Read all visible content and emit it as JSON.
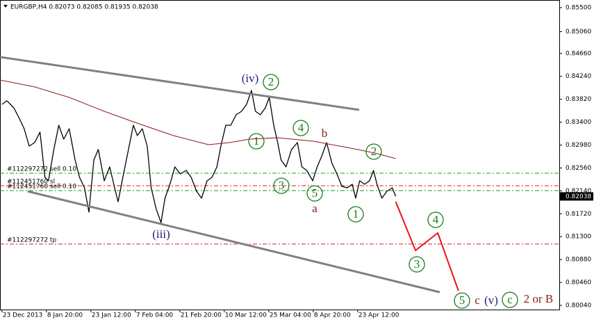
{
  "chart_data": {
    "type": "line",
    "header": "EURGBP,H4  0.82073 0.82085 0.81935 0.82038",
    "xlim": [
      -4,
      1128
    ],
    "ylim": [
      0.79963,
      0.8564
    ],
    "xticks": [
      {
        "value": 0,
        "label": "23 Dec 2013"
      },
      {
        "value": 90,
        "label": "8 Jan 20:00"
      },
      {
        "value": 180,
        "label": "23 Jan 12:00"
      },
      {
        "value": 270,
        "label": "7 Feb 04:00"
      },
      {
        "value": 360,
        "label": "21 Feb 20:00"
      },
      {
        "value": 450,
        "label": "10 Mar 12:00"
      },
      {
        "value": 540,
        "label": "25 Mar 04:00"
      },
      {
        "value": 630,
        "label": "8 Apr 20:00"
      },
      {
        "value": 720,
        "label": "23 Apr 12:00"
      }
    ],
    "yticks": [
      {
        "value": 0.855,
        "label": "0.85500"
      },
      {
        "value": 0.8506,
        "label": "0.85060"
      },
      {
        "value": 0.8466,
        "label": "0.84660"
      },
      {
        "value": 0.8424,
        "label": "0.84240"
      },
      {
        "value": 0.8382,
        "label": "0.83820"
      },
      {
        "value": 0.834,
        "label": "0.83400"
      },
      {
        "value": 0.8298,
        "label": "0.82980"
      },
      {
        "value": 0.8256,
        "label": "0.82560"
      },
      {
        "value": 0.8214,
        "label": "0.82140"
      },
      {
        "value": 0.8172,
        "label": "0.81720"
      },
      {
        "value": 0.813,
        "label": "0.81300"
      },
      {
        "value": 0.8088,
        "label": "0.80880"
      },
      {
        "value": 0.8046,
        "label": "0.80460"
      },
      {
        "value": 0.8004,
        "label": "0.80040"
      }
    ],
    "current_price": {
      "value": 0.82038,
      "label": "0.82038"
    },
    "series": [
      {
        "color": "#000000",
        "width": 1.3,
        "x": [
          0,
          10,
          24,
          35,
          45,
          55,
          66,
          77,
          87,
          94,
          105,
          115,
          125,
          136,
          148,
          157,
          167,
          176,
          186,
          195,
          207,
          218,
          228,
          235,
          246,
          256,
          266,
          274,
          284,
          294,
          302,
          312,
          322,
          330,
          340,
          350,
          361,
          373,
          383,
          394,
          404,
          415,
          425,
          435,
          443,
          453,
          463,
          474,
          485,
          495,
          505,
          513,
          523,
          533,
          541,
          550,
          558,
          565,
          575,
          586,
          598,
          607,
          617,
          629,
          638,
          647,
          657,
          668,
          678,
          688,
          699,
          709,
          716,
          724,
          734,
          744,
          752,
          759,
          769,
          779,
          790,
          797
        ],
        "values": [
          0.83727,
          0.83791,
          0.83663,
          0.83472,
          0.8328,
          0.82961,
          0.83025,
          0.83217,
          0.82387,
          0.82324,
          0.82898,
          0.83344,
          0.83089,
          0.8328,
          0.82706,
          0.82387,
          0.82196,
          0.81749,
          0.82706,
          0.82898,
          0.82324,
          0.82579,
          0.82196,
          0.81941,
          0.82451,
          0.82898,
          0.83344,
          0.83153,
          0.8328,
          0.82961,
          0.82196,
          0.81813,
          0.81558,
          0.82005,
          0.8226,
          0.82579,
          0.82451,
          0.82515,
          0.82387,
          0.82132,
          0.82005,
          0.82324,
          0.82387,
          0.82579,
          0.82961,
          0.83344,
          0.83344,
          0.83535,
          0.83599,
          0.83727,
          0.83982,
          0.83599,
          0.83535,
          0.83663,
          0.83854,
          0.83344,
          0.83025,
          0.82706,
          0.82579,
          0.82898,
          0.83025,
          0.82579,
          0.82515,
          0.82324,
          0.82579,
          0.8277,
          0.83025,
          0.82643,
          0.82451,
          0.82222,
          0.82196,
          0.8226,
          0.82005,
          0.82324,
          0.8226,
          0.82324,
          0.82515,
          0.8226,
          0.82005,
          0.82132,
          0.82196,
          0.82038
        ]
      },
      {
        "color": "#8b1a1a",
        "width": 1,
        "x": [
          -4,
          66,
          136,
          207,
          277,
          347,
          418,
          460,
          502,
          558,
          629,
          699,
          755,
          797
        ],
        "values": [
          0.84173,
          0.84046,
          0.83854,
          0.83599,
          0.8337,
          0.83153,
          0.82987,
          0.83025,
          0.83089,
          0.83114,
          0.83051,
          0.82936,
          0.82834,
          0.82732
        ]
      },
      {
        "color": "#808080",
        "width": 3,
        "x": [
          -4,
          723
        ],
        "values": [
          0.84594,
          0.83625
        ]
      },
      {
        "color": "#808080",
        "width": 3,
        "x": [
          52,
          886
        ],
        "values": [
          0.82132,
          0.80282
        ]
      },
      {
        "color": "#e8141a",
        "width": 2,
        "x": [
          797,
          837,
          882,
          924
        ],
        "values": [
          0.81941,
          0.81048,
          0.81367,
          0.80308
        ]
      }
    ],
    "levels": [
      {
        "label": "#112297272 sell 0.10",
        "value": 0.82464,
        "color": "#1a9c1a"
      },
      {
        "label": "#112451760 sl",
        "value": 0.82234,
        "color": "#e8141a"
      },
      {
        "label": "#112451760 sell 0.10",
        "value": 0.82145,
        "color": "#1a9c1a"
      },
      {
        "label": "#112297272 tp",
        "value": 0.81163,
        "color": "#e8141a"
      }
    ],
    "annotations": [
      {
        "text": "(iv)",
        "color": "#1f1f7a",
        "circled": false
      },
      {
        "text": "2",
        "color": "#1a7a1a",
        "circled": true
      },
      {
        "text": "1",
        "color": "#1a7a1a",
        "circled": true
      },
      {
        "text": "4",
        "color": "#1a7a1a",
        "circled": true
      },
      {
        "text": "b",
        "color": "#8b1a1a",
        "circled": false
      },
      {
        "text": "2",
        "color": "#1a7a1a",
        "circled": true
      },
      {
        "text": "3",
        "color": "#1a7a1a",
        "circled": true
      },
      {
        "text": "5",
        "color": "#1a7a1a",
        "circled": true
      },
      {
        "text": "a",
        "color": "#8b1a1a",
        "circled": false
      },
      {
        "text": "1",
        "color": "#1a7a1a",
        "circled": true
      },
      {
        "text": "(iii)",
        "color": "#1f1f7a",
        "circled": false
      },
      {
        "text": "4",
        "color": "#1a7a1a",
        "circled": true
      },
      {
        "text": "3",
        "color": "#1a7a1a",
        "circled": true
      },
      {
        "text": "5",
        "color": "#1a7a1a",
        "circled": true
      },
      {
        "text": "c",
        "color": "#8b1a1a",
        "circled": false
      },
      {
        "text": "(v)",
        "color": "#1f1f7a",
        "circled": false
      },
      {
        "text": "c",
        "color": "#1a7a1a",
        "circled": true
      },
      {
        "text": "2 or B",
        "color": "#8b1a1a",
        "circled": false
      }
    ]
  }
}
